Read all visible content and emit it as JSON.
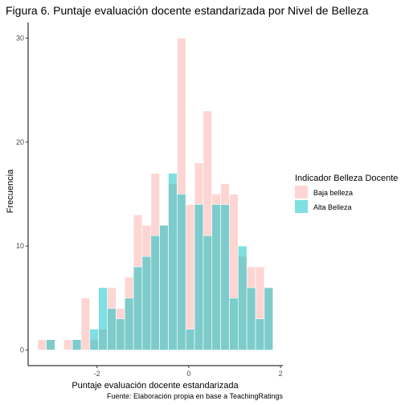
{
  "chart_data": {
    "type": "bar",
    "subtype": "overlapping-histogram",
    "title": "Figura 6. Puntaje evaluación docente estandarizada por Nivel de Belleza",
    "xlabel": "Puntaje evaluación docente estandarizada",
    "ylabel": "Frecuencia",
    "caption": "Fuente: Elaboración propia en base a TeachingRatings",
    "xlim": [
      -3.5,
      2.05
    ],
    "ylim": [
      -1.5,
      31.5
    ],
    "x_ticks": [
      -2,
      0,
      2
    ],
    "x_tick_labels": [
      "-2",
      "0",
      "2"
    ],
    "y_ticks": [
      0,
      10,
      20,
      30
    ],
    "y_tick_labels": [
      "0",
      "10",
      "20",
      "30"
    ],
    "grid": false,
    "legend": {
      "title": "Indicador Belleza Docente",
      "position": "right"
    },
    "bin_width": 0.19,
    "x": [
      -3.2,
      -3.01,
      -2.82,
      -2.63,
      -2.44,
      -2.25,
      -2.06,
      -1.87,
      -1.68,
      -1.49,
      -1.3,
      -1.11,
      -0.92,
      -0.73,
      -0.54,
      -0.35,
      -0.16,
      0.03,
      0.22,
      0.41,
      0.6,
      0.79,
      0.98,
      1.17,
      1.36,
      1.55,
      1.74
    ],
    "series": [
      {
        "name": "Baja belleza",
        "color": "#f8766d",
        "values": [
          1,
          1,
          0,
          1,
          1,
          5,
          1,
          2,
          6,
          4,
          7,
          13,
          12,
          17,
          12,
          16,
          30,
          14,
          18,
          23,
          15,
          16,
          15,
          9,
          8,
          8,
          6
        ]
      },
      {
        "name": "Alta Belleza",
        "color": "#00bfc4",
        "values": [
          0,
          1,
          0,
          0,
          1,
          0,
          2,
          6,
          4,
          3,
          5,
          8,
          9,
          11,
          12,
          17,
          15,
          2,
          14,
          11,
          14,
          14,
          5,
          10,
          6,
          3,
          6
        ]
      }
    ]
  }
}
